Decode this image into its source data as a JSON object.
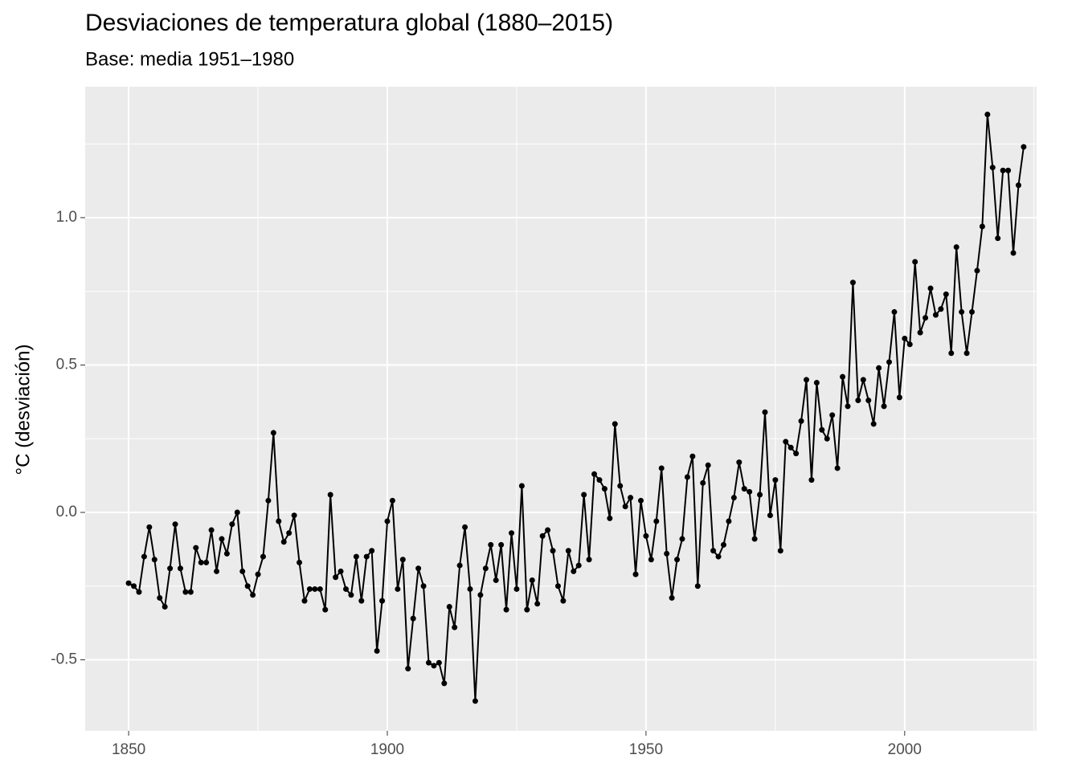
{
  "chart_data": {
    "type": "line",
    "title": "Desviaciones de temperatura global (1880–2015)",
    "subtitle": "Base: media 1951–1980",
    "ylabel": "°C (desviación)",
    "x": [
      1850,
      1851,
      1852,
      1853,
      1854,
      1855,
      1856,
      1857,
      1858,
      1859,
      1860,
      1861,
      1862,
      1863,
      1864,
      1865,
      1866,
      1867,
      1868,
      1869,
      1870,
      1871,
      1872,
      1873,
      1874,
      1875,
      1876,
      1877,
      1878,
      1879,
      1880,
      1881,
      1882,
      1883,
      1884,
      1885,
      1886,
      1887,
      1888,
      1889,
      1890,
      1891,
      1892,
      1893,
      1894,
      1895,
      1896,
      1897,
      1898,
      1899,
      1900,
      1901,
      1902,
      1903,
      1904,
      1905,
      1906,
      1907,
      1908,
      1909,
      1910,
      1911,
      1912,
      1913,
      1914,
      1915,
      1916,
      1917,
      1918,
      1919,
      1920,
      1921,
      1922,
      1923,
      1924,
      1925,
      1926,
      1927,
      1928,
      1929,
      1930,
      1931,
      1932,
      1933,
      1934,
      1935,
      1936,
      1937,
      1938,
      1939,
      1940,
      1941,
      1942,
      1943,
      1944,
      1945,
      1946,
      1947,
      1948,
      1949,
      1950,
      1951,
      1952,
      1953,
      1954,
      1955,
      1956,
      1957,
      1958,
      1959,
      1960,
      1961,
      1962,
      1963,
      1964,
      1965,
      1966,
      1967,
      1968,
      1969,
      1970,
      1971,
      1972,
      1973,
      1974,
      1975,
      1976,
      1977,
      1978,
      1979,
      1980,
      1981,
      1982,
      1983,
      1984,
      1985,
      1986,
      1987,
      1988,
      1989,
      1990,
      1991,
      1992,
      1993,
      1994,
      1995,
      1996,
      1997,
      1998,
      1999,
      2000,
      2001,
      2002,
      2003,
      2004,
      2005,
      2006,
      2007,
      2008,
      2009,
      2010,
      2011,
      2012,
      2013,
      2014,
      2015,
      2016,
      2017,
      2018,
      2019,
      2020,
      2021,
      2022,
      2023
    ],
    "series": [
      {
        "name": "Desviación",
        "color": "#000000",
        "values": [
          -0.24,
          -0.25,
          -0.27,
          -0.15,
          -0.05,
          -0.16,
          -0.29,
          -0.32,
          -0.19,
          -0.04,
          -0.19,
          -0.27,
          -0.27,
          -0.12,
          -0.17,
          -0.17,
          -0.06,
          -0.2,
          -0.09,
          -0.14,
          -0.04,
          0.0,
          -0.2,
          -0.25,
          -0.28,
          -0.21,
          -0.15,
          0.04,
          0.27,
          -0.03,
          -0.1,
          -0.07,
          -0.01,
          -0.17,
          -0.3,
          -0.26,
          -0.26,
          -0.26,
          -0.33,
          0.06,
          -0.22,
          -0.2,
          -0.26,
          -0.28,
          -0.15,
          -0.3,
          -0.15,
          -0.13,
          -0.47,
          -0.3,
          -0.03,
          0.04,
          -0.26,
          -0.16,
          -0.53,
          -0.36,
          -0.19,
          -0.25,
          -0.51,
          -0.52,
          -0.51,
          -0.58,
          -0.32,
          -0.39,
          -0.18,
          -0.05,
          -0.26,
          -0.64,
          -0.28,
          -0.19,
          -0.11,
          -0.23,
          -0.11,
          -0.33,
          -0.07,
          -0.26,
          0.09,
          -0.33,
          -0.23,
          -0.31,
          -0.08,
          -0.06,
          -0.13,
          -0.25,
          -0.3,
          -0.13,
          -0.2,
          -0.18,
          0.06,
          -0.16,
          0.13,
          0.11,
          0.08,
          -0.02,
          0.3,
          0.09,
          0.02,
          0.05,
          -0.21,
          0.04,
          -0.08,
          -0.16,
          -0.03,
          0.15,
          -0.14,
          -0.29,
          -0.16,
          -0.09,
          0.12,
          0.19,
          -0.25,
          0.1,
          0.16,
          -0.13,
          -0.15,
          -0.11,
          -0.03,
          0.05,
          0.17,
          0.08,
          0.07,
          -0.09,
          0.06,
          0.34,
          -0.01,
          0.11,
          -0.13,
          0.24,
          0.22,
          0.2,
          0.31,
          0.45,
          0.11,
          0.44,
          0.28,
          0.25,
          0.33,
          0.15,
          0.46,
          0.36,
          0.78,
          0.38,
          0.45,
          0.38,
          0.3,
          0.49,
          0.36,
          0.51,
          0.68,
          0.39,
          0.59,
          0.57,
          0.85,
          0.61,
          0.66,
          0.76,
          0.67,
          0.69,
          0.74,
          0.54,
          0.9,
          0.68,
          0.54,
          0.68,
          0.82,
          0.97,
          1.35,
          1.17,
          0.93,
          1.16,
          1.16,
          0.88,
          1.11,
          1.24
        ]
      }
    ],
    "xlim": [
      1841.6,
      2025.5
    ],
    "ylim": [
      -0.741,
      1.444
    ],
    "xticks": [
      1850,
      1900,
      1950,
      2000
    ],
    "yticks": [
      -0.5,
      {
        "value": 0,
        "label": "0.0"
      },
      0.5,
      {
        "value": 1,
        "label": "1.0"
      }
    ],
    "xminor": [
      1875,
      1925,
      1975,
      2025
    ],
    "yminor": [
      -0.25,
      0.25,
      0.75,
      1.25
    ],
    "grid": true
  }
}
